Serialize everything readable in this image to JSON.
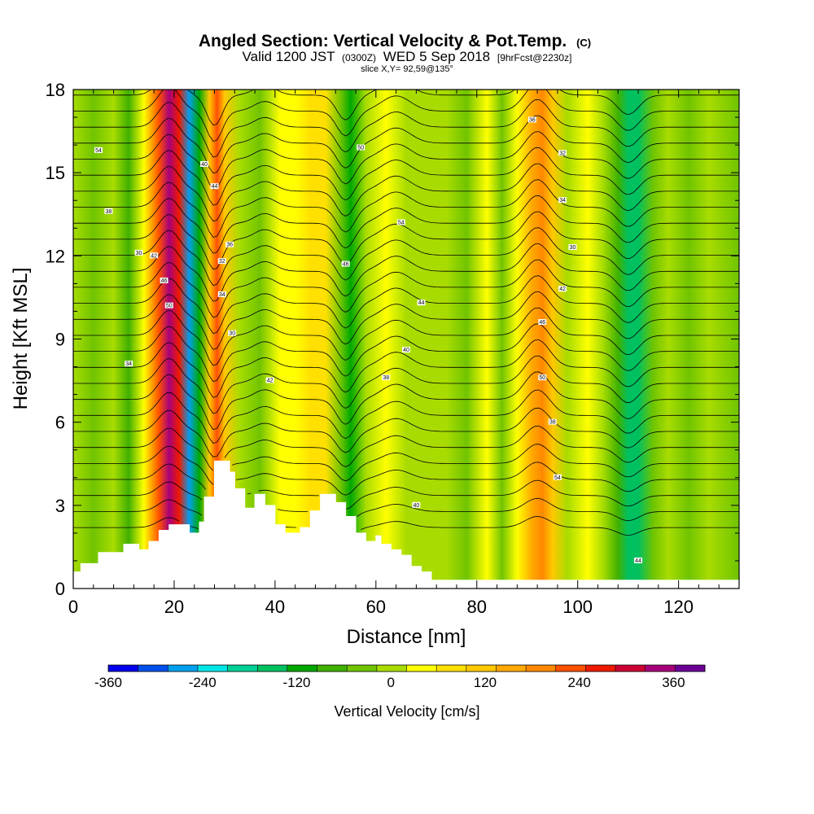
{
  "chart_data": {
    "type": "heatmap",
    "title": "Angled Section: Vertical Velocity & Pot.Temp.",
    "title_mark": "(C)",
    "subtitle": {
      "valid": "Valid 1200 JST",
      "utc": "(0300Z)",
      "date": "WED 5 Sep 2018",
      "forecast": "[9hrFcst@2230z]"
    },
    "slice_label": "slice X,Y= 92,59@135°",
    "xlabel": "Distance [nm]",
    "ylabel": "Height [Kft MSL]",
    "xlim": [
      0,
      132
    ],
    "ylim": [
      0,
      18
    ],
    "x_ticks": [
      0,
      20,
      40,
      60,
      80,
      100,
      120
    ],
    "y_ticks": [
      0,
      3,
      6,
      9,
      12,
      15,
      18
    ],
    "x_tick_labels": [
      "0",
      "20",
      "40",
      "60",
      "80",
      "100",
      "120"
    ],
    "y_tick_labels": [
      "0",
      "3",
      "6",
      "9",
      "12",
      "15",
      "18"
    ],
    "colorbar": {
      "label": "Vertical Velocity [cm/s]",
      "range": [
        -360,
        400
      ],
      "step": 40,
      "tick_values": [
        -360,
        -240,
        -120,
        0,
        120,
        240,
        360
      ],
      "tick_labels": [
        "-360",
        "-240",
        "-120",
        "0",
        "120",
        "240",
        "360"
      ],
      "colors": [
        "#0000ee",
        "#0050ee",
        "#00a0ee",
        "#00e6e6",
        "#00d096",
        "#00c060",
        "#00a800",
        "#40b000",
        "#70c400",
        "#a8dc00",
        "#ffff00",
        "#ffe000",
        "#ffc800",
        "#ffa800",
        "#ff8800",
        "#ff5000",
        "#ee1a00",
        "#cc0033",
        "#a8007a",
        "#6c0096"
      ]
    },
    "velocity_columns": [
      {
        "x": 0,
        "v": 20
      },
      {
        "x": 4,
        "v": -10
      },
      {
        "x": 8,
        "v": 15
      },
      {
        "x": 11,
        "v": -60
      },
      {
        "x": 14,
        "v": 40
      },
      {
        "x": 17,
        "v": 240
      },
      {
        "x": 19,
        "v": 360
      },
      {
        "x": 21,
        "v": 300
      },
      {
        "x": 23,
        "v": -250
      },
      {
        "x": 25,
        "v": -120
      },
      {
        "x": 27,
        "v": 120
      },
      {
        "x": 28.5,
        "v": 250
      },
      {
        "x": 30,
        "v": 150
      },
      {
        "x": 33,
        "v": 30
      },
      {
        "x": 37,
        "v": -20
      },
      {
        "x": 41,
        "v": 40
      },
      {
        "x": 44,
        "v": 60
      },
      {
        "x": 47,
        "v": 110
      },
      {
        "x": 50,
        "v": 80
      },
      {
        "x": 53,
        "v": -40
      },
      {
        "x": 55,
        "v": -120
      },
      {
        "x": 58,
        "v": 30
      },
      {
        "x": 62,
        "v": 60
      },
      {
        "x": 66,
        "v": 20
      },
      {
        "x": 70,
        "v": 10
      },
      {
        "x": 74,
        "v": 20
      },
      {
        "x": 78,
        "v": -30
      },
      {
        "x": 82,
        "v": 60
      },
      {
        "x": 85,
        "v": -40
      },
      {
        "x": 88,
        "v": 40
      },
      {
        "x": 91,
        "v": 180
      },
      {
        "x": 93,
        "v": 230
      },
      {
        "x": 95,
        "v": 120
      },
      {
        "x": 98,
        "v": 20
      },
      {
        "x": 102,
        "v": 60
      },
      {
        "x": 105,
        "v": 20
      },
      {
        "x": 108,
        "v": -70
      },
      {
        "x": 110,
        "v": -140
      },
      {
        "x": 112,
        "v": -130
      },
      {
        "x": 115,
        "v": -40
      },
      {
        "x": 118,
        "v": 20
      },
      {
        "x": 122,
        "v": -20
      },
      {
        "x": 126,
        "v": 10
      },
      {
        "x": 132,
        "v": -30
      }
    ],
    "terrain": [
      {
        "x": 0,
        "h": 0.6
      },
      {
        "x": 1.5,
        "h": 0.9
      },
      {
        "x": 5,
        "h": 1.3
      },
      {
        "x": 10,
        "h": 1.6
      },
      {
        "x": 13,
        "h": 1.4
      },
      {
        "x": 15,
        "h": 1.7
      },
      {
        "x": 17,
        "h": 2.1
      },
      {
        "x": 19,
        "h": 2.3
      },
      {
        "x": 22,
        "h": 2.3
      },
      {
        "x": 23,
        "h": 2.0
      },
      {
        "x": 25,
        "h": 2.4
      },
      {
        "x": 26,
        "h": 3.3
      },
      {
        "x": 28,
        "h": 4.6
      },
      {
        "x": 31,
        "h": 4.2
      },
      {
        "x": 32,
        "h": 3.6
      },
      {
        "x": 34,
        "h": 2.9
      },
      {
        "x": 36,
        "h": 3.4
      },
      {
        "x": 38,
        "h": 3.0
      },
      {
        "x": 40,
        "h": 2.3
      },
      {
        "x": 42,
        "h": 2.0
      },
      {
        "x": 45,
        "h": 2.2
      },
      {
        "x": 47,
        "h": 2.8
      },
      {
        "x": 49,
        "h": 3.4
      },
      {
        "x": 52,
        "h": 3.1
      },
      {
        "x": 54,
        "h": 2.6
      },
      {
        "x": 56,
        "h": 2.0
      },
      {
        "x": 58,
        "h": 1.7
      },
      {
        "x": 60,
        "h": 1.9
      },
      {
        "x": 61,
        "h": 1.6
      },
      {
        "x": 63,
        "h": 1.4
      },
      {
        "x": 65,
        "h": 1.2
      },
      {
        "x": 67,
        "h": 0.8
      },
      {
        "x": 69,
        "h": 0.6
      },
      {
        "x": 71,
        "h": 0.3
      },
      {
        "x": 132,
        "h": 0.3
      }
    ],
    "theta_contours": {
      "levels": [
        28,
        29,
        30,
        31,
        32,
        33,
        34,
        35,
        36,
        37,
        38,
        39,
        40,
        41,
        42,
        43,
        44,
        45,
        46,
        47,
        48,
        49,
        50,
        51,
        52,
        53,
        54,
        55
      ],
      "label_values": [
        "34",
        "30",
        "42",
        "46",
        "50",
        "38",
        "54",
        "40",
        "44",
        "36",
        "32"
      ]
    }
  }
}
